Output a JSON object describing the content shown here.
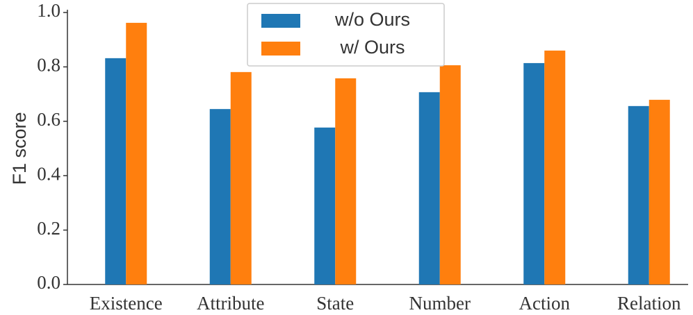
{
  "chart_data": {
    "type": "bar",
    "y_label": "F1 score",
    "categories": [
      "Existence",
      "Attribute",
      "State",
      "Number",
      "Action",
      "Relation"
    ],
    "series": [
      {
        "name": "w/o Ours",
        "color": "#1f77b4",
        "values": [
          0.832,
          0.645,
          0.577,
          0.707,
          0.814,
          0.656
        ]
      },
      {
        "name": "w/ Ours",
        "color": "#ff7f0e",
        "values": [
          0.962,
          0.781,
          0.758,
          0.806,
          0.86,
          0.679
        ]
      }
    ],
    "ylim": [
      0,
      1.0
    ],
    "yticks": [
      {
        "value": 0,
        "label": "0.0"
      },
      0.2,
      0.4,
      0.6,
      0.8,
      {
        "value": 1.0,
        "label": "1.0"
      }
    ],
    "legend": "upper center"
  }
}
